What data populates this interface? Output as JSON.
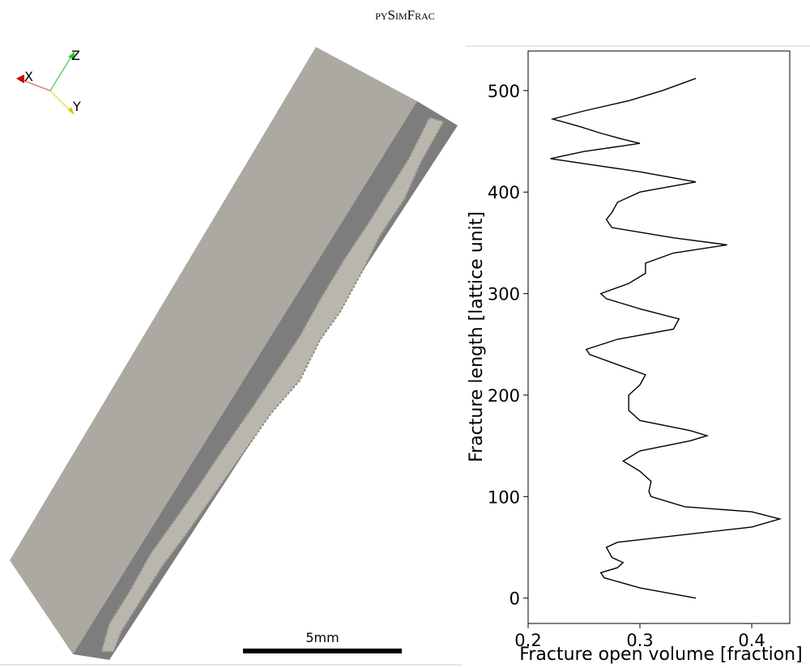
{
  "header": {
    "title": "pySimFrac"
  },
  "render": {
    "axes": [
      "X",
      "Z",
      "Y"
    ],
    "scale_bar": "5mm"
  },
  "chart_data": {
    "type": "line",
    "xlabel": "Fracture open volume [fraction]",
    "ylabel": "Fracture length [lattice unit]",
    "x": [
      0,
      10,
      20,
      25,
      30,
      35,
      40,
      50,
      55,
      60,
      70,
      78,
      85,
      90,
      100,
      105,
      115,
      125,
      135,
      145,
      155,
      160,
      165,
      175,
      185,
      200,
      210,
      220,
      230,
      240,
      245,
      255,
      265,
      275,
      285,
      295,
      300,
      310,
      320,
      330,
      340,
      348,
      355,
      365,
      373,
      380,
      390,
      400,
      410,
      420,
      428,
      433,
      440,
      448,
      452,
      458,
      465,
      472,
      480,
      490,
      500,
      512
    ],
    "series": [
      {
        "color": "#000000",
        "values": [
          0.35,
          0.3,
          0.268,
          0.265,
          0.28,
          0.285,
          0.275,
          0.27,
          0.28,
          0.32,
          0.4,
          0.425,
          0.4,
          0.34,
          0.31,
          0.308,
          0.31,
          0.3,
          0.285,
          0.3,
          0.345,
          0.36,
          0.345,
          0.3,
          0.29,
          0.29,
          0.3,
          0.305,
          0.28,
          0.255,
          0.252,
          0.28,
          0.33,
          0.335,
          0.3,
          0.27,
          0.265,
          0.29,
          0.305,
          0.305,
          0.33,
          0.378,
          0.33,
          0.275,
          0.27,
          0.275,
          0.28,
          0.3,
          0.35,
          0.3,
          0.25,
          0.22,
          0.25,
          0.3,
          0.285,
          0.265,
          0.245,
          0.222,
          0.25,
          0.29,
          0.32,
          0.35
        ]
      }
    ],
    "xlim": [
      0.2,
      0.434
    ],
    "ylim": [
      -25,
      539
    ],
    "xticks": [
      0.2,
      0.3,
      0.4
    ],
    "yticks": [
      0,
      100,
      200,
      300,
      400,
      500
    ]
  }
}
